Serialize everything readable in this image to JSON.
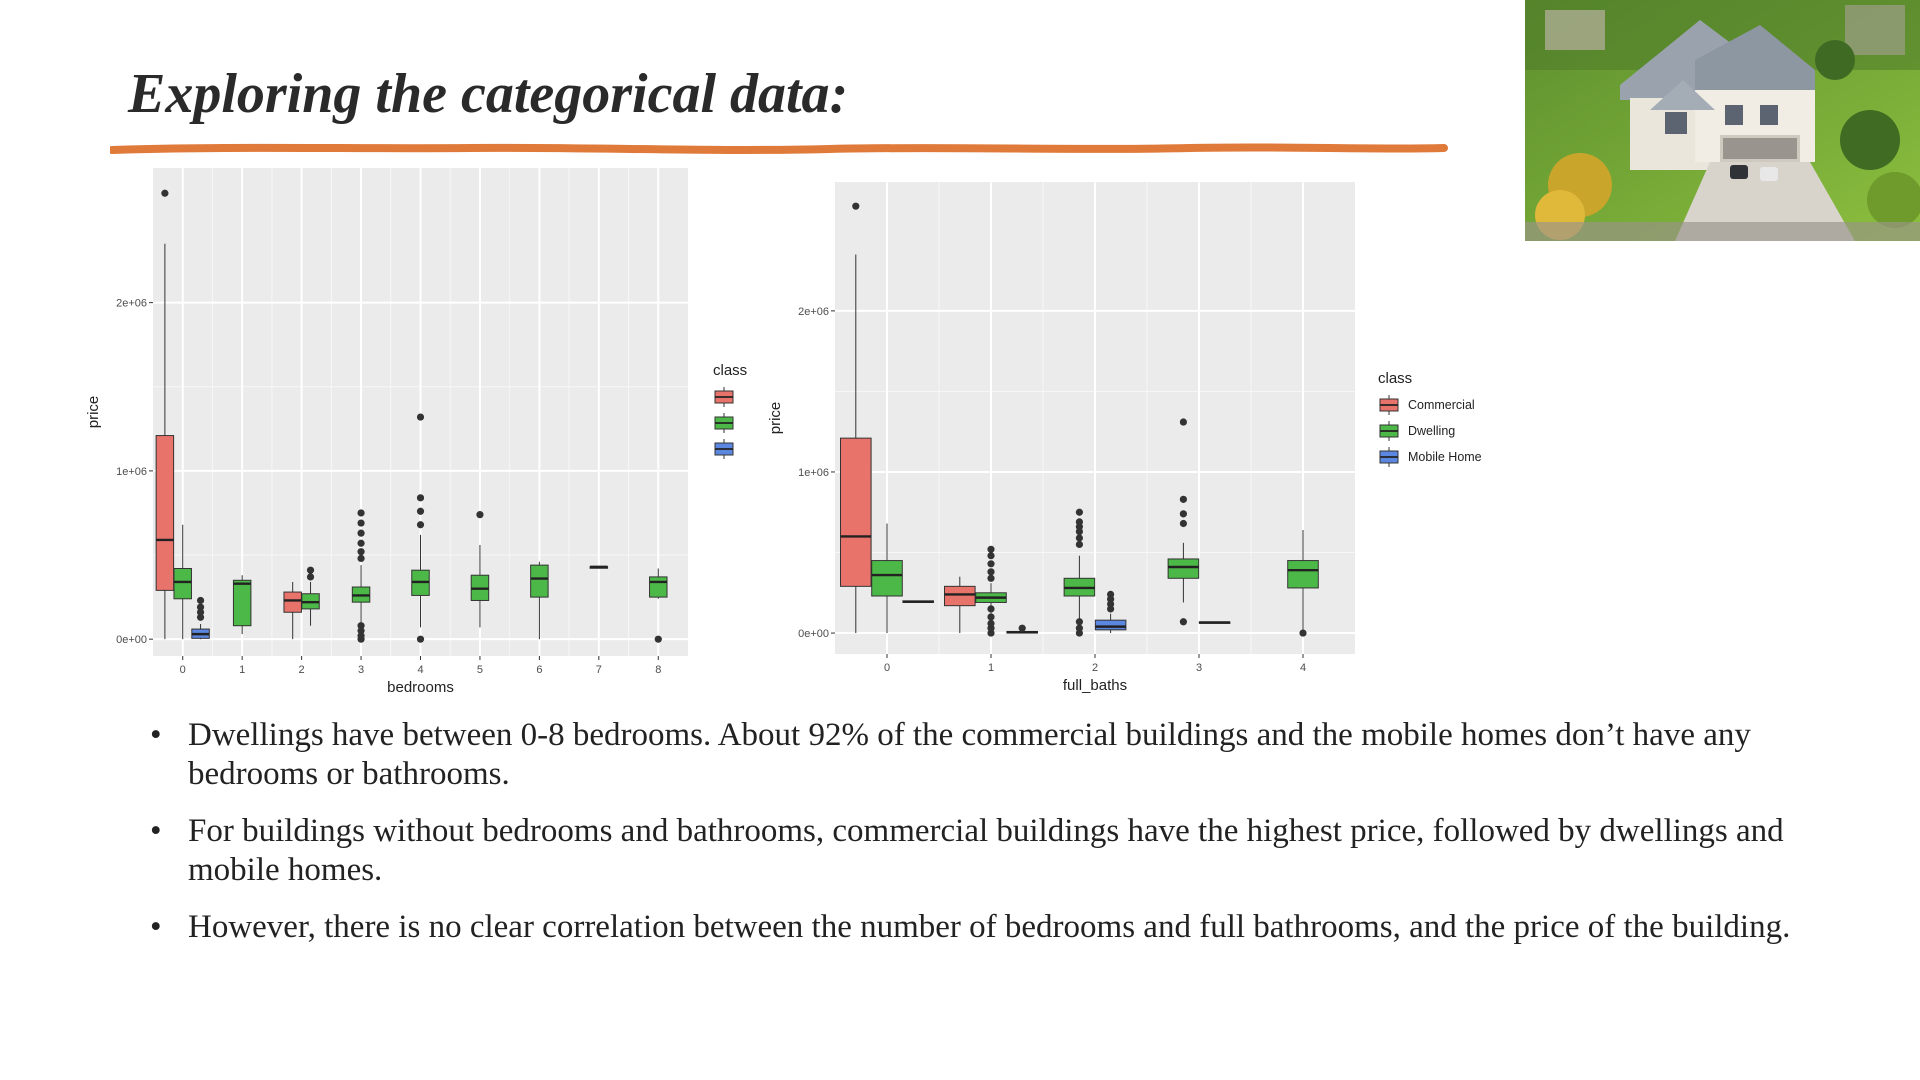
{
  "slide": {
    "title": "Exploring the categorical data:",
    "bullets": [
      "Dwellings have between 0-8 bedrooms. About 92% of the commercial buildings and the mobile homes don’t have any bedrooms or bathrooms.",
      "For buildings without bedrooms and bathrooms, commercial buildings have the highest price, followed by dwellings and mobile homes.",
      "However, there is no clear correlation between the number of bedrooms and full bathrooms, and the price of the building."
    ],
    "bullet_symbol": "•",
    "accent_color": "#e07a3a"
  },
  "chart_data": [
    {
      "type": "box",
      "xlabel": "bedrooms",
      "ylabel": "price",
      "categories": [
        "0",
        "1",
        "2",
        "3",
        "4",
        "5",
        "6",
        "7",
        "8"
      ],
      "yticks": [
        0,
        1000000,
        2000000
      ],
      "ytick_labels": [
        "0e+00",
        "1e+06",
        "2e+06"
      ],
      "ylim": [
        -100000,
        2800000
      ],
      "grid": true,
      "legend": {
        "title": "class",
        "position": "right",
        "entries": [],
        "title_clipped": true
      },
      "series_colors": {
        "Commercial": "#e8736b",
        "Dwelling": "#4cb848",
        "Mobile Home": "#5b87e0"
      },
      "boxes": [
        {
          "category": "0",
          "class": "Commercial",
          "whisker_low": 0,
          "q1": 290000,
          "median": 590000,
          "q3": 1210000,
          "whisker_high": 2350000,
          "outliers": [
            2650000
          ]
        },
        {
          "category": "0",
          "class": "Dwelling",
          "whisker_low": 0,
          "q1": 240000,
          "median": 340000,
          "q3": 420000,
          "whisker_high": 680000,
          "outliers": []
        },
        {
          "category": "0",
          "class": "Mobile Home",
          "whisker_low": 0,
          "q1": 5000,
          "median": 30000,
          "q3": 60000,
          "whisker_high": 90000,
          "outliers": [
            130000,
            160000,
            190000,
            230000
          ]
        },
        {
          "category": "1",
          "class": "Dwelling",
          "whisker_low": 30000,
          "q1": 80000,
          "median": 330000,
          "q3": 350000,
          "whisker_high": 380000,
          "outliers": []
        },
        {
          "category": "2",
          "class": "Commercial",
          "whisker_low": 0,
          "q1": 160000,
          "median": 230000,
          "q3": 280000,
          "whisker_high": 340000,
          "outliers": []
        },
        {
          "category": "2",
          "class": "Dwelling",
          "whisker_low": 80000,
          "q1": 180000,
          "median": 220000,
          "q3": 270000,
          "whisker_high": 340000,
          "outliers": [
            370000,
            410000
          ]
        },
        {
          "category": "3",
          "class": "Dwelling",
          "whisker_low": 90000,
          "q1": 220000,
          "median": 260000,
          "q3": 310000,
          "whisker_high": 440000,
          "outliers": [
            0,
            20000,
            50000,
            80000,
            480000,
            520000,
            570000,
            630000,
            690000,
            750000
          ]
        },
        {
          "category": "4",
          "class": "Dwelling",
          "whisker_low": 70000,
          "q1": 260000,
          "median": 340000,
          "q3": 410000,
          "whisker_high": 620000,
          "outliers": [
            0,
            680000,
            760000,
            840000,
            1320000
          ]
        },
        {
          "category": "5",
          "class": "Dwelling",
          "whisker_low": 70000,
          "q1": 230000,
          "median": 300000,
          "q3": 380000,
          "whisker_high": 560000,
          "outliers": [
            740000
          ]
        },
        {
          "category": "6",
          "class": "Dwelling",
          "whisker_low": 0,
          "q1": 250000,
          "median": 360000,
          "q3": 440000,
          "whisker_high": 460000,
          "outliers": []
        },
        {
          "category": "7",
          "class": "Dwelling",
          "whisker_low": 430000,
          "q1": 430000,
          "median": 430000,
          "q3": 430000,
          "whisker_high": 430000,
          "outliers": []
        },
        {
          "category": "8",
          "class": "Dwelling",
          "whisker_low": 240000,
          "q1": 250000,
          "median": 340000,
          "q3": 370000,
          "whisker_high": 420000,
          "outliers": [
            0
          ]
        }
      ]
    },
    {
      "type": "box",
      "xlabel": "full_baths",
      "ylabel": "price",
      "categories": [
        "0",
        "1",
        "2",
        "3",
        "4"
      ],
      "yticks": [
        0,
        1000000,
        2000000
      ],
      "ytick_labels": [
        "0e+00",
        "1e+06",
        "2e+06"
      ],
      "ylim": [
        -130000,
        2800000
      ],
      "grid": true,
      "legend": {
        "title": "class",
        "position": "right",
        "entries": [
          "Commercial",
          "Dwelling",
          "Mobile Home"
        ]
      },
      "series_colors": {
        "Commercial": "#e8736b",
        "Dwelling": "#4cb848",
        "Mobile Home": "#5b87e0"
      },
      "boxes": [
        {
          "category": "0",
          "class": "Commercial",
          "whisker_low": 0,
          "q1": 290000,
          "median": 600000,
          "q3": 1210000,
          "whisker_high": 2350000,
          "outliers": [
            2650000
          ]
        },
        {
          "category": "0",
          "class": "Dwelling",
          "whisker_low": 0,
          "q1": 230000,
          "median": 360000,
          "q3": 450000,
          "whisker_high": 680000,
          "outliers": []
        },
        {
          "category": "0",
          "class": "Mobile Home",
          "whisker_low": 190000,
          "q1": 190000,
          "median": 195000,
          "q3": 200000,
          "whisker_high": 200000,
          "outliers": []
        },
        {
          "category": "1",
          "class": "Commercial",
          "whisker_low": 0,
          "q1": 170000,
          "median": 240000,
          "q3": 290000,
          "whisker_high": 350000,
          "outliers": []
        },
        {
          "category": "1",
          "class": "Dwelling",
          "whisker_low": 90000,
          "q1": 190000,
          "median": 220000,
          "q3": 250000,
          "whisker_high": 310000,
          "outliers": [
            0,
            30000,
            60000,
            100000,
            150000,
            340000,
            380000,
            430000,
            480000,
            520000
          ]
        },
        {
          "category": "1",
          "class": "Mobile Home",
          "whisker_low": 0,
          "q1": 0,
          "median": 5000,
          "q3": 10000,
          "whisker_high": 10000,
          "outliers": [
            30000
          ]
        },
        {
          "category": "2",
          "class": "Dwelling",
          "whisker_low": 90000,
          "q1": 230000,
          "median": 280000,
          "q3": 340000,
          "whisker_high": 480000,
          "outliers": [
            0,
            30000,
            70000,
            550000,
            590000,
            630000,
            660000,
            690000,
            750000
          ]
        },
        {
          "category": "2",
          "class": "Mobile Home",
          "whisker_low": 0,
          "q1": 20000,
          "median": 40000,
          "q3": 80000,
          "whisker_high": 120000,
          "outliers": [
            150000,
            180000,
            210000,
            240000
          ]
        },
        {
          "category": "3",
          "class": "Dwelling",
          "whisker_low": 190000,
          "q1": 340000,
          "median": 410000,
          "q3": 460000,
          "whisker_high": 560000,
          "outliers": [
            70000,
            680000,
            740000,
            830000,
            1310000
          ]
        },
        {
          "category": "3",
          "class": "Mobile Home",
          "whisker_low": 60000,
          "q1": 60000,
          "median": 65000,
          "q3": 70000,
          "whisker_high": 70000,
          "outliers": []
        },
        {
          "category": "4",
          "class": "Dwelling",
          "whisker_low": 0,
          "q1": 280000,
          "median": 390000,
          "q3": 450000,
          "whisker_high": 640000,
          "outliers": [
            0
          ]
        }
      ]
    }
  ]
}
